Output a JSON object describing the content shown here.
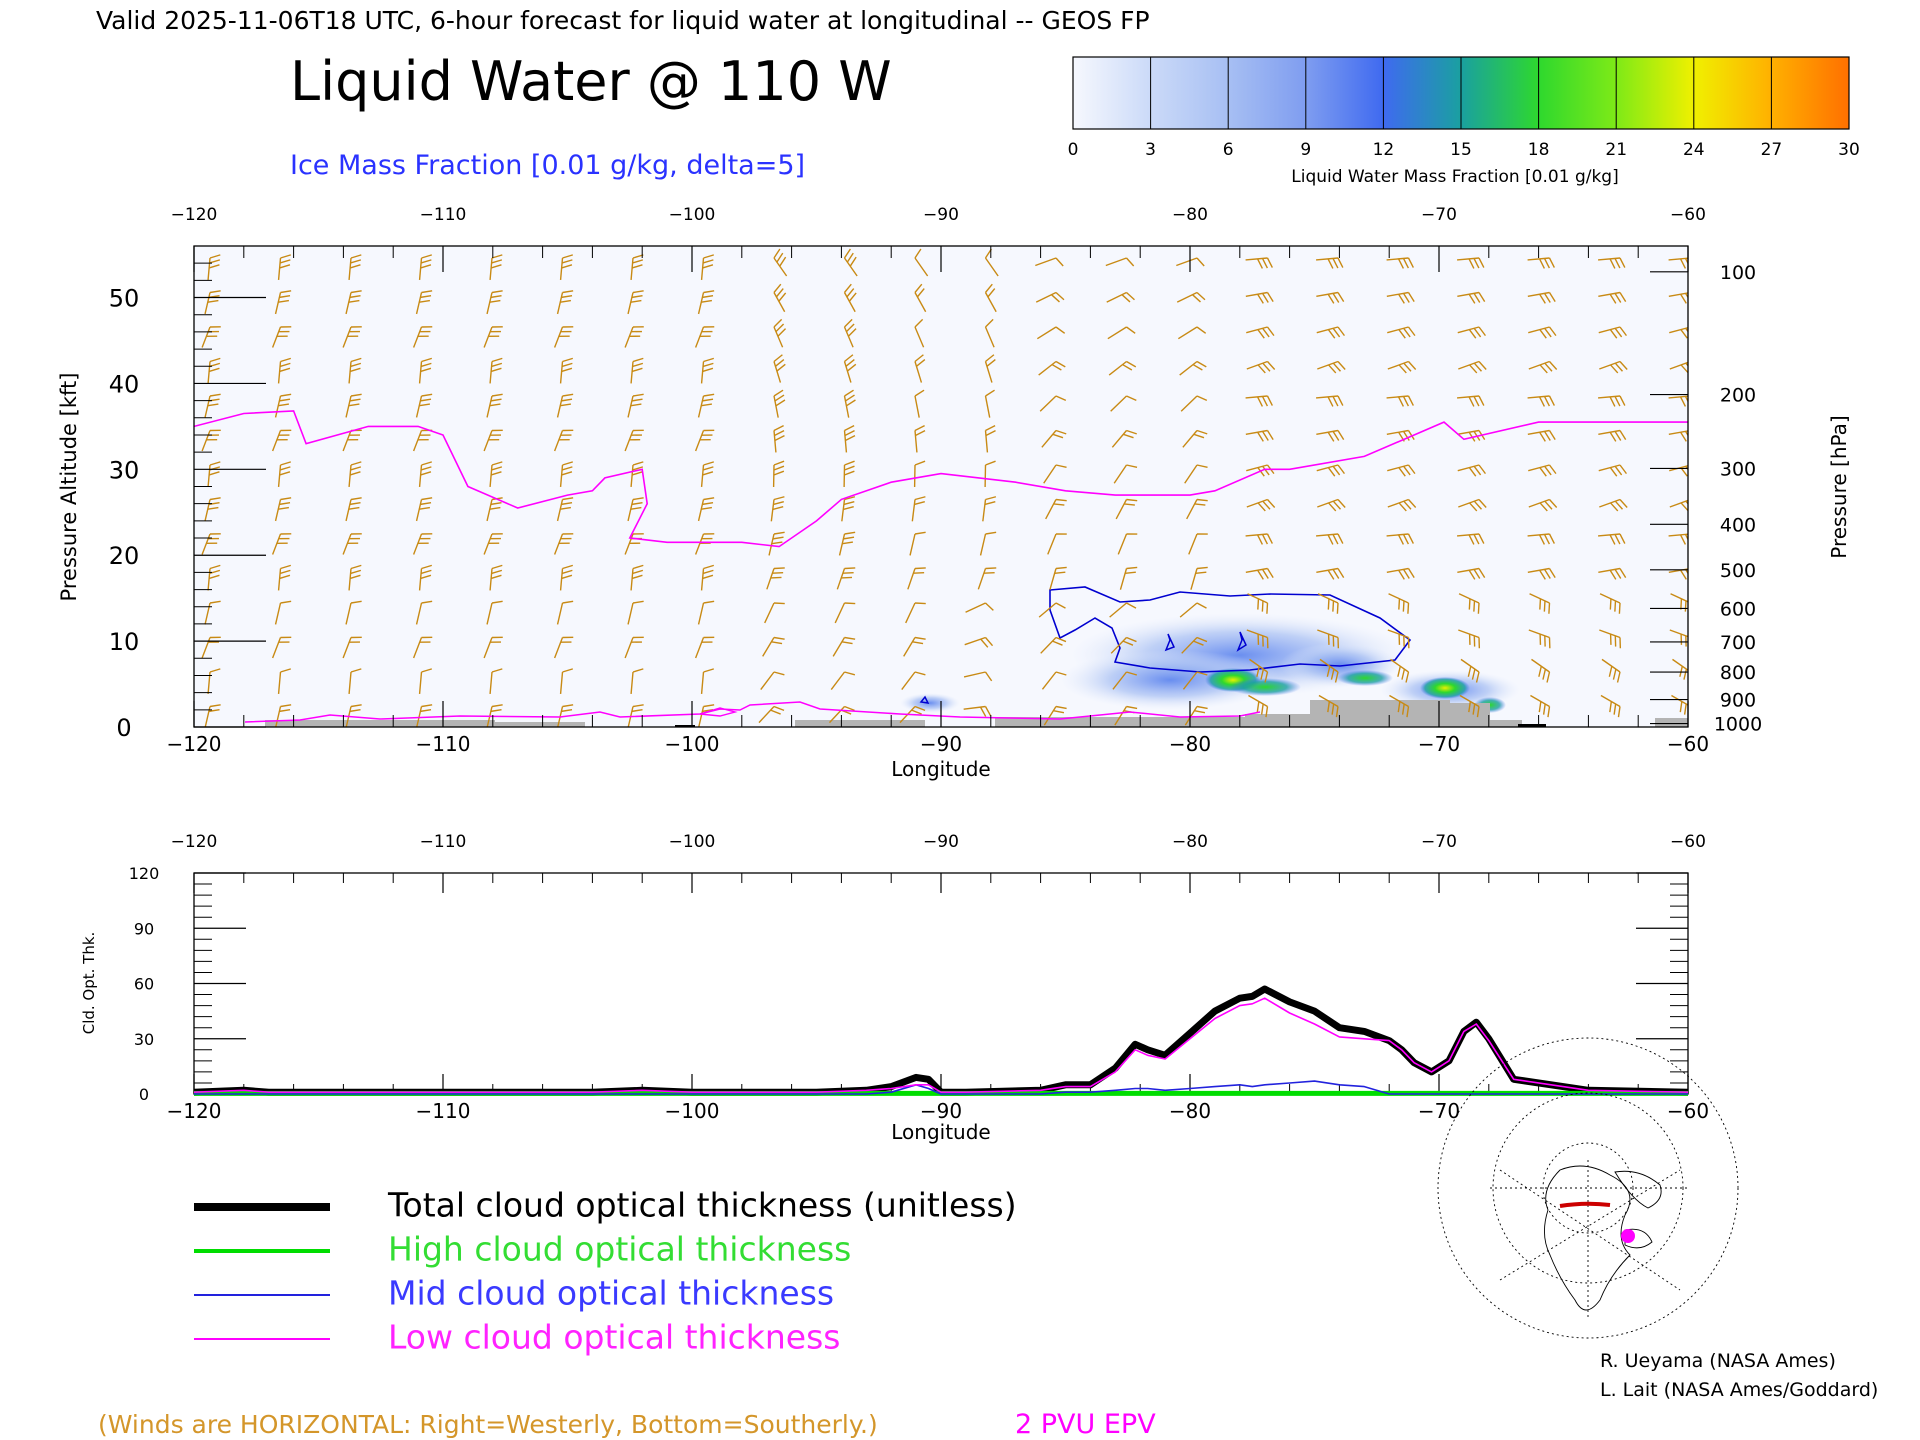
{
  "header": {
    "valid_line": "Valid 2025-11-06T18 UTC, 6-hour forecast for liquid water at longitudinal -- GEOS FP",
    "title": "Liquid Water @ 110 W",
    "subtitle": "Ice Mass Fraction [0.01 g/kg, delta=5]"
  },
  "colorbar": {
    "ticks": [
      "0",
      "3",
      "6",
      "9",
      "12",
      "15",
      "18",
      "21",
      "24",
      "27",
      "30"
    ],
    "label": "Liquid Water Mass Fraction [0.01 g/kg]",
    "colors": [
      "#f6f8fe",
      "#cbdaf8",
      "#a7bff3",
      "#7f9df0",
      "#3f6af0",
      "#1aa0a0",
      "#2ed82e",
      "#7eea17",
      "#f0f000",
      "#ffb000",
      "#ff7000"
    ]
  },
  "colors": {
    "winds": "#c88a14",
    "epv": "#ff00ff",
    "ice": "#0000d0",
    "terrain": "#b4b4b4",
    "black": "#000000"
  },
  "chart_data": [
    {
      "type": "heatmap",
      "title": "Liquid Water @ 110 W",
      "xlabel": "Longitude",
      "ylabel": "Pressure Altitude [kft]",
      "y2label": "Pressure [hPa]",
      "xlim": [
        -120,
        -60
      ],
      "ylim": [
        0,
        56
      ],
      "xticks": [
        "−120",
        "−110",
        "−100",
        "−90",
        "−80",
        "−70",
        "−60"
      ],
      "yticks": [
        "0",
        "10",
        "20",
        "30",
        "40",
        "50"
      ],
      "pressure_ticks": [
        "100",
        "200",
        "300",
        "400",
        "500",
        "600",
        "700",
        "800",
        "900",
        "1000"
      ],
      "pressure_tick_kft": [
        53.0,
        38.7,
        30.1,
        23.6,
        18.3,
        13.8,
        9.9,
        6.4,
        3.2,
        0.4
      ],
      "epv_2pvu_line": {
        "lon": [
          -120,
          -118,
          -116,
          -115.5,
          -113,
          -111,
          -110,
          -109,
          -107,
          -105,
          -104,
          -103.5,
          -102,
          -101.8,
          -102.5,
          -101,
          -98,
          -96.5,
          -95,
          -94,
          -92,
          -90,
          -87,
          -85,
          -83,
          -80,
          -79,
          -77,
          -76,
          -73,
          -71,
          -69.8,
          -69,
          -66,
          -63,
          -60
        ],
        "kft": [
          35,
          36.5,
          36.8,
          33,
          35,
          35,
          34,
          28,
          25.5,
          27,
          27.5,
          29,
          30,
          26,
          22,
          21.5,
          21.5,
          21,
          24,
          26.5,
          28.5,
          29.5,
          28.5,
          27.5,
          27,
          27,
          27.5,
          30,
          30,
          31.5,
          34,
          35.5,
          33.5,
          35.5,
          35.5,
          35.5
        ]
      },
      "liquid_water_max": [
        {
          "lon": -78.5,
          "kft": 5.5,
          "value": 19
        },
        {
          "lon": -77,
          "kft": 4.8,
          "value": 16
        },
        {
          "lon": -73,
          "kft": 6.2,
          "value": 14
        },
        {
          "lon": -69.5,
          "kft": 4.7,
          "value": 19
        },
        {
          "lon": -80,
          "kft": 9,
          "value": 8
        },
        {
          "lon": -91,
          "kft": 3.2,
          "value": 8
        }
      ]
    },
    {
      "type": "line",
      "ylabel": "Cld. Opt. Thk.",
      "xlabel": "Longitude",
      "xlim": [
        -120,
        -60
      ],
      "ylim": [
        0,
        120
      ],
      "xticks": [
        "−120",
        "−110",
        "−100",
        "−90",
        "−80",
        "−70",
        "−60"
      ],
      "yticks": [
        "0",
        "30",
        "60",
        "90",
        "120"
      ],
      "x": [
        -120,
        -118,
        -117,
        -110,
        -104,
        -102,
        -100,
        -95,
        -93,
        -92,
        -91,
        -90.5,
        -90,
        -89,
        -86,
        -85,
        -84,
        -83,
        -82.2,
        -81.7,
        -81,
        -80,
        -79,
        -78,
        -77.5,
        -77,
        -76,
        -75,
        -74,
        -73,
        -72,
        -71.5,
        -71,
        -70.3,
        -69.6,
        -69,
        -68.5,
        -68,
        -67,
        -64,
        -60
      ],
      "series": [
        {
          "name": "Total cloud optical thickness (unitless)",
          "color": "#000000",
          "values": [
            1,
            2,
            1,
            1,
            1,
            2,
            1,
            1,
            2,
            4,
            9,
            8,
            1,
            1,
            2,
            5,
            5,
            14,
            27,
            24,
            21,
            33,
            45,
            52,
            53,
            57,
            50,
            45,
            36,
            34,
            29,
            24,
            17,
            12,
            18,
            34,
            39,
            30,
            8,
            2,
            1
          ]
        },
        {
          "name": "High cloud optical thickness",
          "color": "#00dd00",
          "values": [
            0.3,
            0.3,
            0.3,
            0.3,
            0.3,
            0.3,
            0.3,
            0.3,
            0.3,
            0.3,
            0.3,
            0.3,
            0.3,
            0.3,
            0.3,
            0.3,
            0.3,
            0.3,
            0.3,
            0.3,
            0.3,
            0.3,
            0.3,
            0.3,
            0.3,
            0.3,
            0.3,
            0.3,
            0.3,
            0.3,
            0.3,
            0.3,
            0.3,
            0.3,
            0.3,
            0.3,
            0.3,
            0.3,
            0.3,
            0.3,
            0.3
          ]
        },
        {
          "name": "Mid cloud optical thickness",
          "color": "#2222dd",
          "values": [
            0,
            0,
            0,
            0,
            0,
            0,
            0,
            0,
            0,
            1,
            5,
            3,
            0,
            0,
            0,
            1,
            1,
            2,
            3,
            3,
            2,
            3,
            4,
            5,
            4,
            5,
            6,
            7,
            5,
            4,
            0,
            0,
            0,
            0,
            0,
            0,
            0,
            0,
            0,
            0,
            0
          ]
        },
        {
          "name": "Low cloud optical thickness",
          "color": "#ff00ff",
          "values": [
            1,
            2,
            1,
            1,
            1,
            2,
            1,
            1,
            2,
            3,
            5,
            5,
            1,
            1,
            2,
            4,
            4,
            12,
            24,
            21,
            19,
            30,
            41,
            48,
            49,
            52,
            44,
            38,
            31,
            30,
            29,
            24,
            17,
            12,
            18,
            34,
            38,
            29,
            8,
            2,
            1
          ]
        }
      ]
    }
  ],
  "legend": {
    "total": "Total cloud optical thickness (unitless)",
    "high": "High cloud optical thickness",
    "mid": "Mid cloud optical thickness",
    "low": "Low cloud optical thickness"
  },
  "footer": {
    "winds_note": "(Winds are HORIZONTAL: Right=Westerly, Bottom=Southerly.)",
    "epv_label": "2 PVU EPV",
    "credit1": "R. Ueyama (NASA Ames)",
    "credit2": "L. Lait (NASA Ames/Goddard)"
  },
  "map": {
    "icon": "polar-stereographic-globe"
  }
}
